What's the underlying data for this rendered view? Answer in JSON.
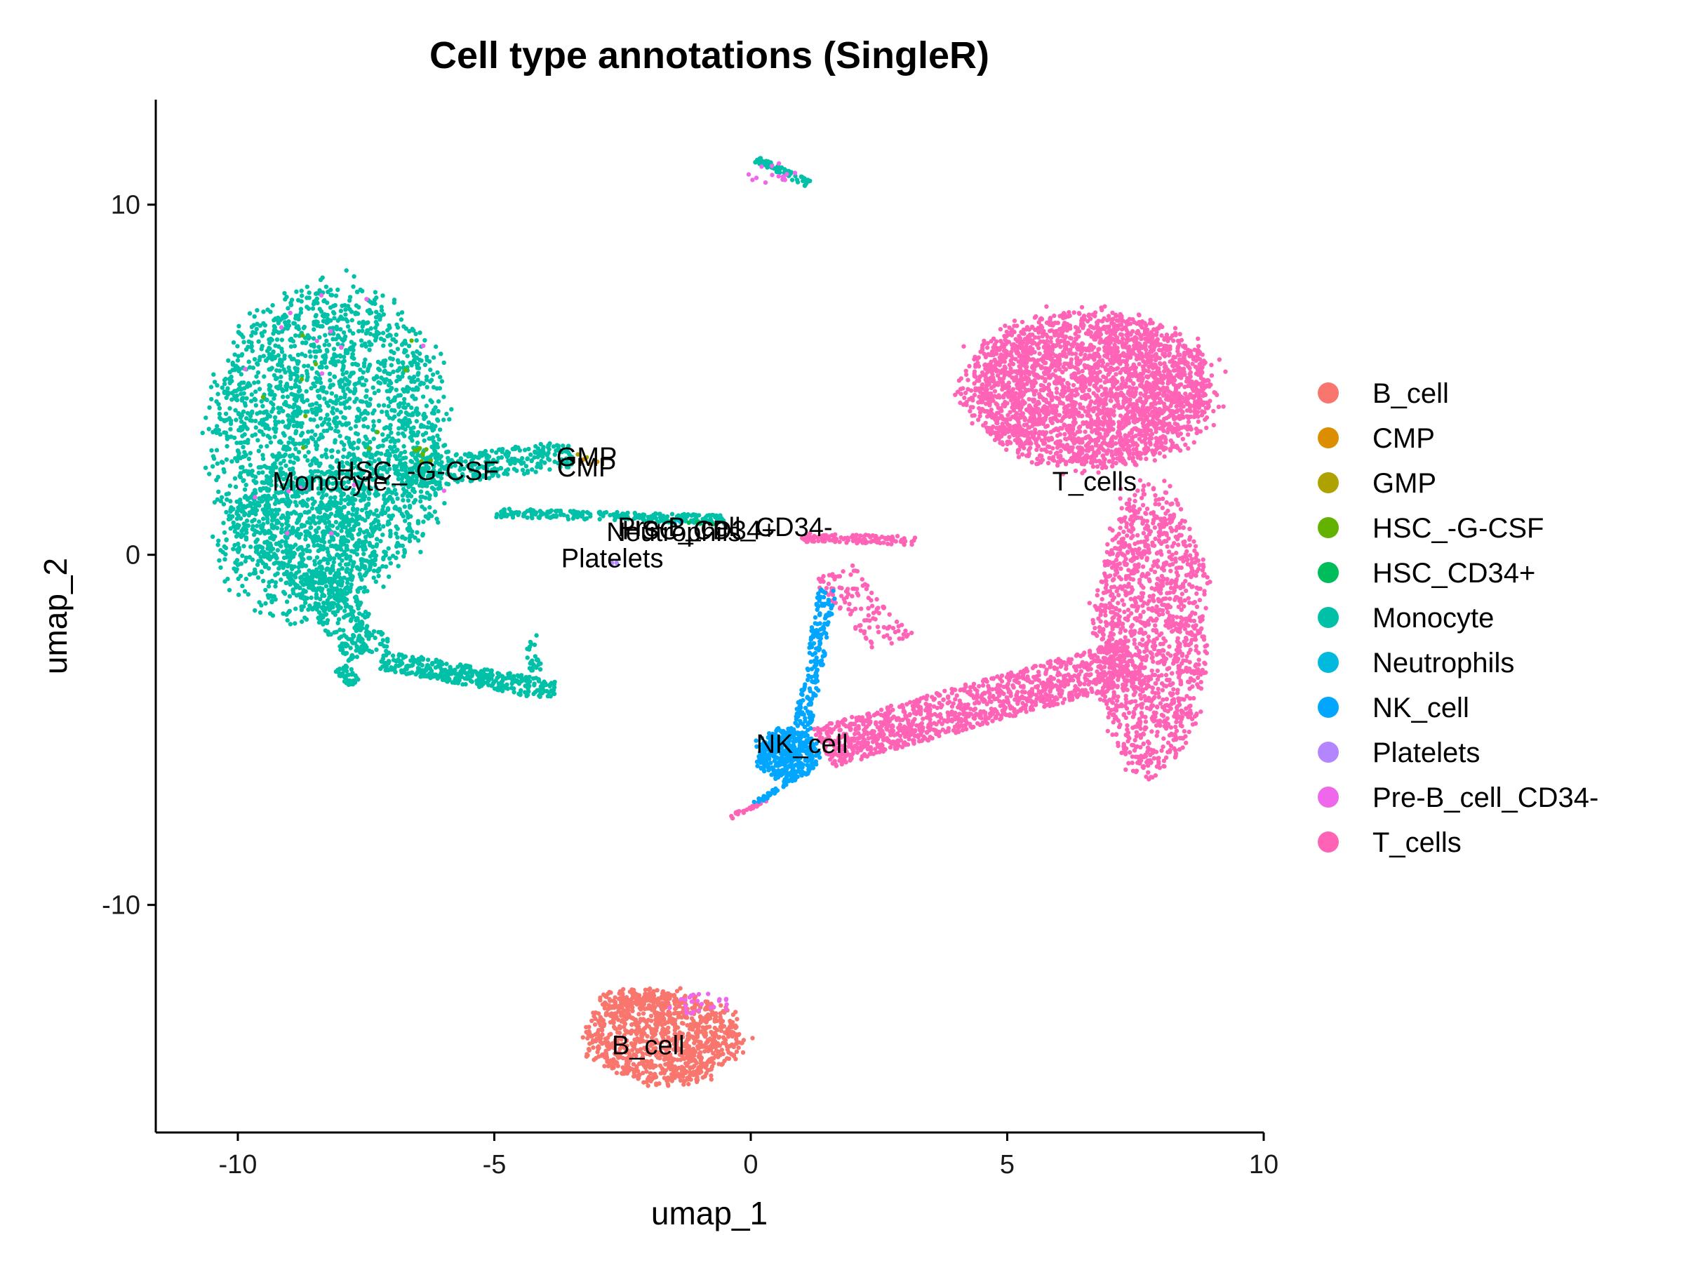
{
  "chart_data": {
    "type": "scatter",
    "title": "Cell type annotations (SingleR)",
    "xlabel": "umap_1",
    "ylabel": "umap_2",
    "xlim": [
      -11.6,
      10
    ],
    "ylim": [
      -16.5,
      13
    ],
    "x_ticks": [
      -10,
      -5,
      0,
      5,
      10
    ],
    "x_tick_labels": [
      "-10",
      "-5",
      "0",
      "5",
      "10"
    ],
    "y_ticks": [
      -10,
      0,
      10
    ],
    "y_tick_labels": [
      "-10",
      "0",
      "10"
    ],
    "grid": false,
    "legend_position": "right",
    "series": [
      {
        "name": "B_cell",
        "color": "#F8766D"
      },
      {
        "name": "CMP",
        "color": "#DB8E00"
      },
      {
        "name": "GMP",
        "color": "#AEA200"
      },
      {
        "name": "HSC_-G-CSF",
        "color": "#64B200"
      },
      {
        "name": "HSC_CD34+",
        "color": "#00BD5C"
      },
      {
        "name": "Monocyte",
        "color": "#00C1A7"
      },
      {
        "name": "Neutrophils",
        "color": "#00BADE"
      },
      {
        "name": "NK_cell",
        "color": "#00A6FF"
      },
      {
        "name": "Platelets",
        "color": "#B385FF"
      },
      {
        "name": "Pre-B_cell_CD34-",
        "color": "#EF67EB"
      },
      {
        "name": "T_cells",
        "color": "#FF63B6"
      }
    ],
    "cluster_labels": [
      {
        "text": "Monocyte",
        "x": -8.2,
        "y": 2.1
      },
      {
        "text": "HSC_-G-CSF",
        "x": -6.5,
        "y": 2.4
      },
      {
        "text": "GMP",
        "x": -3.2,
        "y": 2.8
      },
      {
        "text": "CMP",
        "x": -3.2,
        "y": 2.5
      },
      {
        "text": "Pre-B_cell_CD34-",
        "x": -0.5,
        "y": 0.8
      },
      {
        "text": "Neutrophils",
        "x": -1.5,
        "y": 0.65
      },
      {
        "text": "HSC_CD34+",
        "x": -1.0,
        "y": 0.7
      },
      {
        "text": "Platelets",
        "x": -2.7,
        "y": -0.1
      },
      {
        "text": "T_cells",
        "x": 6.7,
        "y": 2.1
      },
      {
        "text": "NK_cell",
        "x": 1.0,
        "y": -5.4
      },
      {
        "text": "B_cell",
        "x": -2.0,
        "y": -14.0
      }
    ],
    "clusters": [
      {
        "series": "Monocyte",
        "shape": "ellipse",
        "cx": -8.2,
        "cy": 3.3,
        "rx": 2.3,
        "ry": 4.3,
        "n": 2400
      },
      {
        "series": "Monocyte",
        "shape": "ellipse",
        "cx": -8.8,
        "cy": 0.3,
        "rx": 1.6,
        "ry": 2.2,
        "n": 500
      },
      {
        "series": "Monocyte",
        "shape": "segment",
        "x1": -8.6,
        "y1": -0.5,
        "x2": -7.4,
        "y2": -2.8,
        "width": 1.0,
        "n": 320
      },
      {
        "series": "Monocyte",
        "shape": "segment",
        "x1": -7.2,
        "y1": -3.0,
        "x2": -3.8,
        "y2": -3.9,
        "width": 0.55,
        "n": 380
      },
      {
        "series": "Monocyte",
        "shape": "segment",
        "x1": -8.0,
        "y1": -3.2,
        "x2": -7.7,
        "y2": -3.7,
        "width": 0.3,
        "n": 40
      },
      {
        "series": "Monocyte",
        "shape": "segment",
        "x1": -4.3,
        "y1": -2.3,
        "x2": -4.2,
        "y2": -3.3,
        "width": 0.25,
        "n": 25
      },
      {
        "series": "Monocyte",
        "shape": "segment",
        "x1": -6.9,
        "y1": 2.2,
        "x2": -3.5,
        "y2": 2.9,
        "width": 0.8,
        "n": 320
      },
      {
        "series": "Monocyte",
        "shape": "segment",
        "x1": -5.0,
        "y1": 1.2,
        "x2": -0.5,
        "y2": 1.0,
        "width": 0.25,
        "n": 240
      },
      {
        "series": "Monocyte",
        "shape": "segment",
        "x1": 0.1,
        "y1": 11.3,
        "x2": 1.1,
        "y2": 10.6,
        "width": 0.2,
        "n": 60
      },
      {
        "series": "T_cells",
        "shape": "ellipse",
        "cx": 6.6,
        "cy": 4.7,
        "rx": 2.4,
        "ry": 2.2,
        "n": 3000
      },
      {
        "series": "T_cells",
        "shape": "ellipse",
        "cx": 7.8,
        "cy": -2.2,
        "rx": 1.1,
        "ry": 4.0,
        "n": 1400
      },
      {
        "series": "T_cells",
        "shape": "segment",
        "x1": 1.4,
        "y1": -5.5,
        "x2": 7.5,
        "y2": -3.0,
        "width": 1.2,
        "n": 1200
      },
      {
        "series": "T_cells",
        "shape": "segment",
        "x1": 1.0,
        "y1": 0.5,
        "x2": 3.2,
        "y2": 0.4,
        "width": 0.25,
        "n": 120
      },
      {
        "series": "T_cells",
        "shape": "segment",
        "x1": 1.6,
        "y1": -0.5,
        "x2": 2.8,
        "y2": -2.5,
        "width": 0.9,
        "n": 120
      },
      {
        "series": "T_cells",
        "shape": "segment",
        "x1": -0.4,
        "y1": -7.5,
        "x2": 0.3,
        "y2": -7.0,
        "width": 0.1,
        "n": 25
      },
      {
        "series": "NK_cell",
        "shape": "ellipse",
        "cx": 0.7,
        "cy": -5.7,
        "rx": 0.6,
        "ry": 0.75,
        "n": 420
      },
      {
        "series": "NK_cell",
        "shape": "segment",
        "x1": 1.5,
        "y1": -1.0,
        "x2": 1.0,
        "y2": -5.0,
        "width": 0.35,
        "n": 200
      },
      {
        "series": "NK_cell",
        "shape": "segment",
        "x1": 1.0,
        "y1": -6.2,
        "x2": 0.1,
        "y2": -7.1,
        "width": 0.12,
        "n": 40
      },
      {
        "series": "B_cell",
        "shape": "ellipse",
        "cx": -1.7,
        "cy": -13.8,
        "rx": 1.5,
        "ry": 1.3,
        "n": 1000
      },
      {
        "series": "B_cell",
        "shape": "ellipse",
        "cx": -2.2,
        "cy": -12.7,
        "rx": 0.8,
        "ry": 0.3,
        "n": 100
      },
      {
        "series": "Pre-B_cell_CD34-",
        "shape": "ellipse",
        "cx": -1.0,
        "cy": -12.8,
        "rx": 0.6,
        "ry": 0.35,
        "n": 25
      },
      {
        "series": "Pre-B_cell_CD34-",
        "shape": "ellipse",
        "cx": 0.4,
        "cy": 10.9,
        "rx": 0.5,
        "ry": 0.3,
        "n": 15
      },
      {
        "series": "Pre-B_cell_CD34-",
        "shape": "ellipse",
        "cx": -8.0,
        "cy": 3.5,
        "rx": 2.0,
        "ry": 4.0,
        "n": 18
      },
      {
        "series": "HSC_-G-CSF",
        "shape": "ellipse",
        "cx": -6.4,
        "cy": 2.8,
        "rx": 0.25,
        "ry": 0.25,
        "n": 8
      },
      {
        "series": "HSC_-G-CSF",
        "shape": "ellipse",
        "cx": -8.0,
        "cy": 4.8,
        "rx": 1.6,
        "ry": 2.2,
        "n": 10
      },
      {
        "series": "GMP",
        "shape": "ellipse",
        "cx": -3.2,
        "cy": 2.8,
        "rx": 0.3,
        "ry": 0.15,
        "n": 3
      },
      {
        "series": "CMP",
        "shape": "ellipse",
        "cx": -3.2,
        "cy": 2.6,
        "rx": 0.3,
        "ry": 0.15,
        "n": 3
      },
      {
        "series": "HSC_CD34+",
        "shape": "ellipse",
        "cx": -1.0,
        "cy": 0.9,
        "rx": 0.3,
        "ry": 0.1,
        "n": 4
      },
      {
        "series": "Neutrophils",
        "shape": "ellipse",
        "cx": -1.5,
        "cy": 0.9,
        "rx": 0.3,
        "ry": 0.1,
        "n": 3
      },
      {
        "series": "Platelets",
        "shape": "ellipse",
        "cx": -2.7,
        "cy": -0.2,
        "rx": 0.08,
        "ry": 0.12,
        "n": 3
      }
    ]
  }
}
